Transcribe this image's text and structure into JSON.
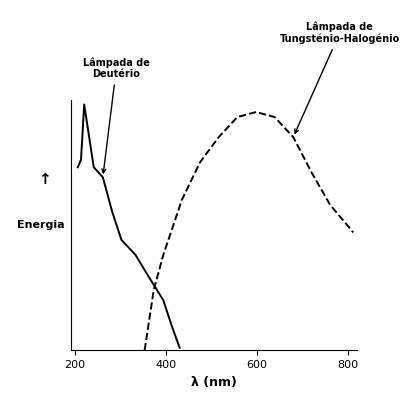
{
  "chart_data": {
    "type": "line",
    "x_label": "λ (nm)",
    "y_label": "Energia",
    "annotations": [
      "↑"
    ],
    "xlim": [
      190,
      820
    ],
    "xticks": [
      200,
      400,
      600,
      800
    ],
    "ylim": [
      0,
      100
    ],
    "yticks": [],
    "tick_labels": "x",
    "grid": false,
    "series": [
      {
        "name": "Lâmpada de\nDeutério",
        "color": "#000000",
        "line_style": "solid",
        "x": [
          206,
          213,
          220,
          231,
          241,
          261,
          282,
          302,
          333,
          363,
          394,
          414,
          430
        ],
        "values": [
          73,
          76,
          98,
          85,
          73,
          69,
          55,
          44,
          38,
          29,
          20,
          9,
          1
        ]
      },
      {
        "name": "Lâmpada de\nTungsténio-Halogénio",
        "color": "#000000",
        "line_style": "dashed",
        "x": [
          353,
          373,
          394,
          435,
          475,
          516,
          557,
          598,
          639,
          680,
          720,
          761,
          812
        ],
        "values": [
          0,
          24,
          38,
          60,
          75,
          85,
          93,
          95,
          93,
          85,
          71,
          58,
          47
        ]
      }
    ]
  }
}
